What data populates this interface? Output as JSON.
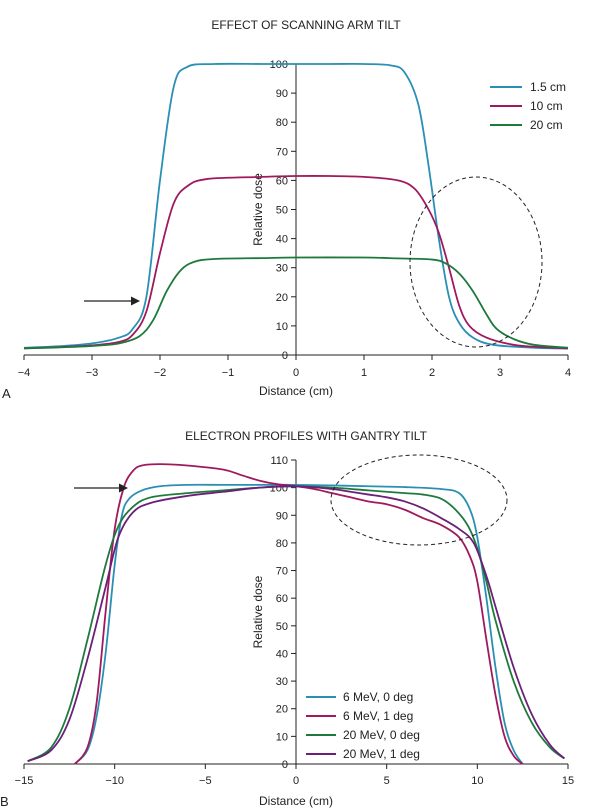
{
  "chart_data": [
    {
      "panel_label": "A",
      "type": "line",
      "title": "EFFECT OF SCANNING ARM TILT",
      "xlabel": "Distance (cm)",
      "ylabel": "Relative dose",
      "xlim": [
        -4,
        4
      ],
      "ylim": [
        0,
        100
      ],
      "xticks": [
        -4,
        -3,
        -2,
        -1,
        0,
        1,
        2,
        3,
        4
      ],
      "yticks": [
        0,
        10,
        20,
        30,
        40,
        50,
        60,
        70,
        80,
        90,
        100
      ],
      "legend_position": "top-right",
      "series": [
        {
          "name": "1.5 cm",
          "color": "#2a8fb5",
          "points": [
            [
              -4,
              2.5
            ],
            [
              -3.5,
              3
            ],
            [
              -3,
              4
            ],
            [
              -2.6,
              6
            ],
            [
              -2.4,
              9
            ],
            [
              -2.2,
              20
            ],
            [
              -2.0,
              60
            ],
            [
              -1.8,
              92
            ],
            [
              -1.6,
              99
            ],
            [
              -1.2,
              100
            ],
            [
              -0.5,
              100
            ],
            [
              0,
              100
            ],
            [
              0.5,
              100
            ],
            [
              1,
              100
            ],
            [
              1.4,
              99.5
            ],
            [
              1.6,
              97
            ],
            [
              1.8,
              86
            ],
            [
              1.95,
              65
            ],
            [
              2.1,
              40
            ],
            [
              2.25,
              20
            ],
            [
              2.4,
              11
            ],
            [
              2.6,
              6
            ],
            [
              2.9,
              3.5
            ],
            [
              3.5,
              2.5
            ],
            [
              4,
              2.2
            ]
          ]
        },
        {
          "name": "10 cm",
          "color": "#a0195e",
          "points": [
            [
              -4,
              2.3
            ],
            [
              -3.5,
              2.7
            ],
            [
              -3,
              3.3
            ],
            [
              -2.6,
              4.5
            ],
            [
              -2.4,
              7
            ],
            [
              -2.2,
              15
            ],
            [
              -2.0,
              35
            ],
            [
              -1.8,
              52
            ],
            [
              -1.6,
              58
            ],
            [
              -1.3,
              60.5
            ],
            [
              -0.5,
              61.2
            ],
            [
              0,
              61.5
            ],
            [
              0.5,
              61.5
            ],
            [
              1,
              61.2
            ],
            [
              1.5,
              60
            ],
            [
              1.75,
              57
            ],
            [
              1.95,
              50
            ],
            [
              2.1,
              42
            ],
            [
              2.25,
              30
            ],
            [
              2.4,
              17
            ],
            [
              2.55,
              10
            ],
            [
              2.8,
              6
            ],
            [
              3.2,
              3.5
            ],
            [
              3.6,
              2.7
            ],
            [
              4,
              2.3
            ]
          ]
        },
        {
          "name": "20 cm",
          "color": "#1e7a3c",
          "points": [
            [
              -4,
              2.3
            ],
            [
              -3.5,
              2.6
            ],
            [
              -3,
              3.1
            ],
            [
              -2.6,
              4
            ],
            [
              -2.3,
              6.5
            ],
            [
              -2.1,
              12
            ],
            [
              -1.9,
              22
            ],
            [
              -1.7,
              29
            ],
            [
              -1.5,
              32
            ],
            [
              -1.2,
              33
            ],
            [
              -0.5,
              33.3
            ],
            [
              0,
              33.5
            ],
            [
              1,
              33.5
            ],
            [
              1.5,
              33.2
            ],
            [
              2,
              32.8
            ],
            [
              2.2,
              31.5
            ],
            [
              2.4,
              28
            ],
            [
              2.6,
              22
            ],
            [
              2.8,
              14
            ],
            [
              2.95,
              9
            ],
            [
              3.2,
              5.5
            ],
            [
              3.5,
              3.5
            ],
            [
              4,
              2.5
            ]
          ]
        }
      ]
    },
    {
      "panel_label": "B",
      "type": "line",
      "title": "ELECTRON PROFILES WITH GANTRY TILT",
      "xlabel": "Distance (cm)",
      "ylabel": "Relative dose",
      "xlim": [
        -15,
        15
      ],
      "ylim": [
        0,
        110
      ],
      "xticks": [
        -15,
        -10,
        -5,
        0,
        5,
        10,
        15
      ],
      "yticks": [
        0,
        10,
        20,
        30,
        40,
        50,
        60,
        70,
        80,
        90,
        100,
        110
      ],
      "legend_position": "bottom-right",
      "series": [
        {
          "name": "6 MeV, 0 deg",
          "color": "#2a8fb5",
          "points": [
            [
              -12.2,
              0
            ],
            [
              -11.5,
              5
            ],
            [
              -11,
              17
            ],
            [
              -10.5,
              40
            ],
            [
              -10,
              72
            ],
            [
              -9.6,
              90
            ],
            [
              -9.2,
              96
            ],
            [
              -8.5,
              99
            ],
            [
              -7.5,
              100.5
            ],
            [
              -6,
              101
            ],
            [
              -4,
              101
            ],
            [
              -2,
              101
            ],
            [
              0,
              101
            ],
            [
              2,
              100.8
            ],
            [
              4,
              100.5
            ],
            [
              6,
              100.2
            ],
            [
              8,
              99.5
            ],
            [
              9,
              98
            ],
            [
              9.6,
              92
            ],
            [
              10,
              82
            ],
            [
              10.5,
              60
            ],
            [
              11,
              35
            ],
            [
              11.5,
              15
            ],
            [
              12,
              5
            ],
            [
              12.5,
              0
            ]
          ]
        },
        {
          "name": "6 MeV, 1 deg",
          "color": "#a0195e",
          "points": [
            [
              -12.2,
              0
            ],
            [
              -11.5,
              6
            ],
            [
              -11,
              22
            ],
            [
              -10.5,
              55
            ],
            [
              -10,
              85
            ],
            [
              -9.5,
              100
            ],
            [
              -9,
              106
            ],
            [
              -8.5,
              108
            ],
            [
              -7.5,
              108.5
            ],
            [
              -6,
              108
            ],
            [
              -4,
              106.5
            ],
            [
              -3,
              104.5
            ],
            [
              -2,
              102.5
            ],
            [
              -1,
              101.2
            ],
            [
              0,
              100.5
            ],
            [
              1,
              99.5
            ],
            [
              2,
              98
            ],
            [
              3,
              96.5
            ],
            [
              4,
              95
            ],
            [
              5,
              94
            ],
            [
              6,
              92
            ],
            [
              7,
              89
            ],
            [
              8,
              86.5
            ],
            [
              9,
              82
            ],
            [
              9.6,
              75
            ],
            [
              10,
              66
            ],
            [
              10.5,
              45
            ],
            [
              11,
              25
            ],
            [
              11.5,
              10
            ],
            [
              12,
              3
            ],
            [
              12.5,
              0
            ]
          ]
        },
        {
          "name": "20 MeV, 0 deg",
          "color": "#1e7a3c",
          "points": [
            [
              -14.8,
              1
            ],
            [
              -13.5,
              6
            ],
            [
              -12.5,
              20
            ],
            [
              -11.5,
              45
            ],
            [
              -10.5,
              72
            ],
            [
              -9.8,
              86
            ],
            [
              -9,
              93
            ],
            [
              -8,
              96.5
            ],
            [
              -6,
              98
            ],
            [
              -4,
              99
            ],
            [
              -2,
              100
            ],
            [
              0,
              100.5
            ],
            [
              2,
              100
            ],
            [
              4,
              99
            ],
            [
              6,
              98
            ],
            [
              7,
              97.5
            ],
            [
              8,
              96
            ],
            [
              8.8,
              92
            ],
            [
              9.5,
              86
            ],
            [
              10,
              78
            ],
            [
              10.5,
              66
            ],
            [
              11,
              52
            ],
            [
              12,
              30
            ],
            [
              13,
              15
            ],
            [
              14,
              6
            ],
            [
              14.8,
              2
            ]
          ]
        },
        {
          "name": "20 MeV, 1 deg",
          "color": "#6b1f7a",
          "points": [
            [
              -14.8,
              1
            ],
            [
              -13.5,
              5
            ],
            [
              -12.5,
              16
            ],
            [
              -11.5,
              38
            ],
            [
              -10.5,
              64
            ],
            [
              -9.8,
              82
            ],
            [
              -9,
              91
            ],
            [
              -8,
              94.5
            ],
            [
              -6,
              97
            ],
            [
              -4,
              98.5
            ],
            [
              -2,
              100
            ],
            [
              0,
              100.5
            ],
            [
              2,
              99.5
            ],
            [
              3,
              98.5
            ],
            [
              4,
              97.5
            ],
            [
              5,
              96.5
            ],
            [
              6,
              95
            ],
            [
              7,
              92.5
            ],
            [
              8,
              89
            ],
            [
              9,
              85
            ],
            [
              9.8,
              80
            ],
            [
              10.5,
              68
            ],
            [
              11,
              57
            ],
            [
              12,
              35
            ],
            [
              13,
              18
            ],
            [
              14,
              7
            ],
            [
              14.8,
              2
            ]
          ]
        }
      ]
    }
  ]
}
